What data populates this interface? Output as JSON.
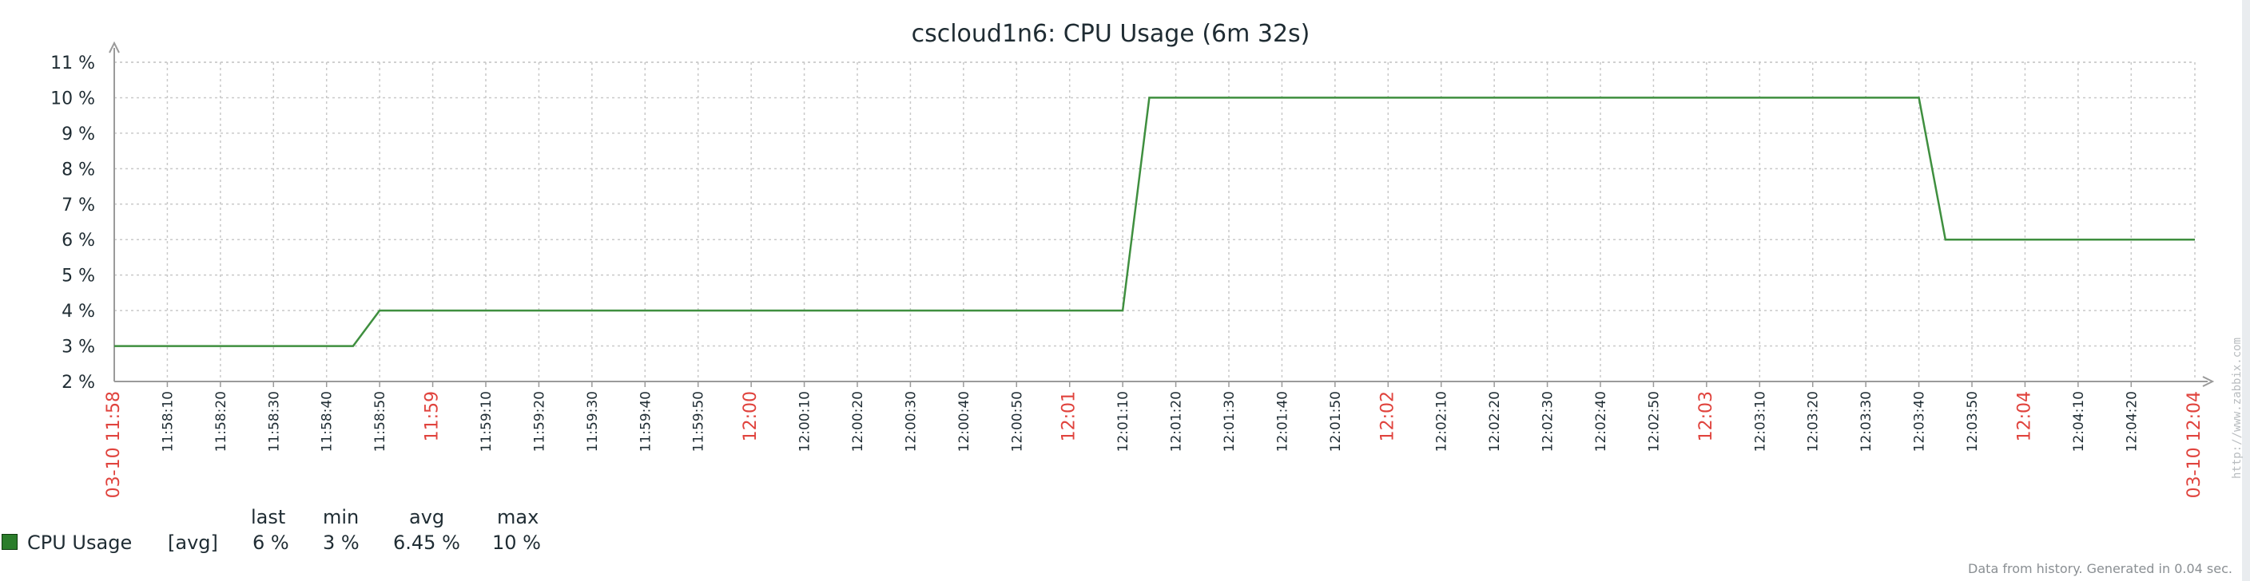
{
  "chart_data": {
    "type": "line",
    "title": "cscloud1n6: CPU Usage (6m 32s)",
    "x_start": "03-10 11:58",
    "x_end": "03-10 12:04",
    "x_ticks": [
      "11:58:10",
      "11:58:20",
      "11:58:30",
      "11:58:40",
      "11:58:50",
      "11:59:00",
      "11:59:10",
      "11:59:20",
      "11:59:30",
      "11:59:40",
      "11:59:50",
      "12:00:00",
      "12:00:10",
      "12:00:20",
      "12:00:30",
      "12:00:40",
      "12:00:50",
      "12:01:00",
      "12:01:10",
      "12:01:20",
      "12:01:30",
      "12:01:40",
      "12:01:50",
      "12:02:00",
      "12:02:10",
      "12:02:20",
      "12:02:30",
      "12:02:40",
      "12:02:50",
      "12:03:00",
      "12:03:10",
      "12:03:20",
      "12:03:30",
      "12:03:40",
      "12:03:50",
      "12:04:00",
      "12:04:10",
      "12:04:20"
    ],
    "x_ticks_highlighted": [
      "11:59:00",
      "12:00:00",
      "12:01:00",
      "12:02:00",
      "12:03:00",
      "12:04:00"
    ],
    "y_ticks": [
      "2 %",
      "3 %",
      "4 %",
      "5 %",
      "6 %",
      "7 %",
      "8 %",
      "9 %",
      "10 %",
      "11 %"
    ],
    "ylim": [
      2,
      11
    ],
    "grid": true,
    "series": [
      {
        "name": "CPU Usage",
        "color": "#3f8f3f",
        "points": [
          {
            "x": "11:58:00",
            "y": 3
          },
          {
            "x": "11:58:45",
            "y": 3
          },
          {
            "x": "11:58:50",
            "y": 4
          },
          {
            "x": "12:01:10",
            "y": 4
          },
          {
            "x": "12:01:15",
            "y": 10
          },
          {
            "x": "12:03:40",
            "y": 10
          },
          {
            "x": "12:03:45",
            "y": 6
          },
          {
            "x": "12:04:32",
            "y": 6
          }
        ]
      }
    ]
  },
  "legend": {
    "headers": {
      "last": "last",
      "min": "min",
      "avg": "avg",
      "max": "max"
    },
    "items": [
      {
        "name": "CPU Usage",
        "func": "[avg]",
        "last": "6 %",
        "min": "3 %",
        "avg": "6.45 %",
        "max": "10 %",
        "color": "#2b7d2b"
      }
    ]
  },
  "footer": "Data from history. Generated in 0.04 sec.",
  "watermark": "http://www.zabbix.com"
}
